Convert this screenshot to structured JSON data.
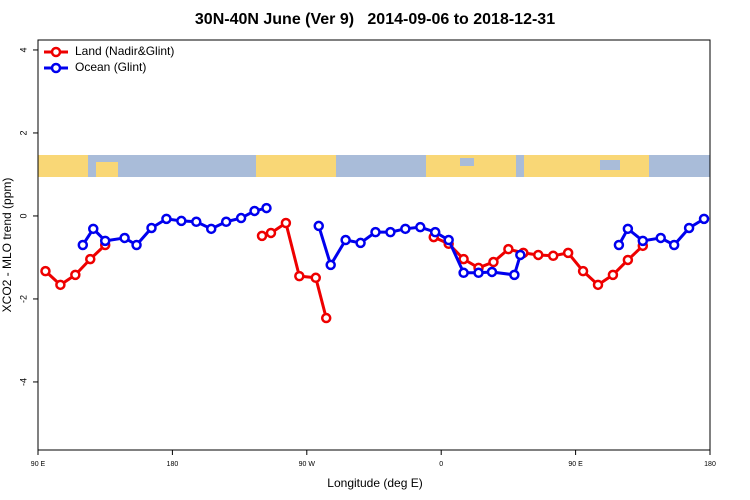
{
  "chart_data": {
    "type": "line",
    "title": "30N-40N June (Ver 9)   2014-09-06 to 2018-12-31",
    "x_label": "Longitude (deg E)",
    "y_label": "XCO2 - MLO trend (ppm)",
    "xlim": [
      90,
      540
    ],
    "ylim": [
      -5.64,
      4.24
    ],
    "xticks": [
      {
        "value": 90,
        "label": "90 E"
      },
      180,
      {
        "value": 270,
        "label": "90 W"
      },
      {
        "value": 360,
        "label": "0"
      },
      {
        "value": 450,
        "label": "90 E"
      },
      {
        "value": 540,
        "label": "180"
      }
    ],
    "yticks": [
      -4,
      -2,
      0,
      2,
      4
    ],
    "legend": "topleft",
    "series": [
      {
        "name": "Land (Nadir&Glint)",
        "color": "#ee0000",
        "x": [
          95,
          105,
          115,
          125,
          135,
          null,
          240,
          246,
          256,
          265,
          276,
          283,
          null,
          355,
          365,
          375,
          385,
          395,
          405,
          415,
          425,
          435,
          445,
          455,
          465,
          475,
          485,
          495
        ],
        "values": [
          -1.33,
          -1.66,
          -1.42,
          -1.04,
          -0.7,
          null,
          -0.48,
          -0.41,
          -0.17,
          -1.45,
          -1.49,
          -2.46,
          null,
          -0.51,
          -0.67,
          -1.04,
          -1.25,
          -1.11,
          -0.8,
          -0.89,
          -0.94,
          -0.96,
          -0.89,
          -1.33,
          -1.66,
          -1.42,
          -1.06,
          -0.72
        ]
      },
      {
        "name": "Ocean (Glint)",
        "color": "#0000ee",
        "x": [
          120,
          127,
          135,
          148,
          156,
          166,
          176,
          186,
          196,
          206,
          216,
          226,
          235,
          243,
          null,
          278,
          286,
          296,
          306,
          316,
          326,
          336,
          346,
          356,
          365,
          375,
          385,
          394,
          409,
          413,
          null,
          479,
          485,
          495,
          507,
          516,
          526,
          536
        ],
        "values": [
          -0.7,
          -0.31,
          -0.6,
          -0.53,
          -0.7,
          -0.29,
          -0.07,
          -0.12,
          -0.14,
          -0.31,
          -0.14,
          -0.05,
          0.12,
          0.19,
          null,
          -0.24,
          -1.18,
          -0.58,
          -0.65,
          -0.39,
          -0.39,
          -0.31,
          -0.27,
          -0.39,
          -0.58,
          -1.37,
          -1.37,
          -1.35,
          -1.42,
          -0.94,
          null,
          -0.7,
          -0.31,
          -0.6,
          -0.53,
          -0.7,
          -0.29,
          -0.07
        ]
      }
    ]
  }
}
